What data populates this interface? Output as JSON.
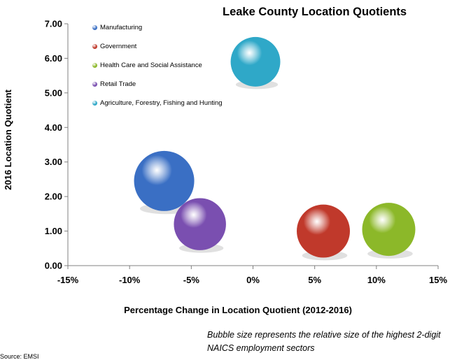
{
  "chart_data": {
    "type": "scatter",
    "variant": "bubble",
    "title": "Leake County Location Quotients",
    "xlabel": "Percentage Change in Location Quotient (2012-2016)",
    "ylabel": "2016 Location Quotient",
    "xlim": [
      -15,
      15
    ],
    "ylim": [
      0,
      7
    ],
    "x_ticks": [
      -15,
      -10,
      -5,
      0,
      5,
      10,
      15
    ],
    "x_tick_labels": [
      "-15%",
      "-10%",
      "-5%",
      "0%",
      "5%",
      "10%",
      "15%"
    ],
    "y_ticks": [
      0,
      1,
      2,
      3,
      4,
      5,
      6,
      7
    ],
    "y_tick_labels": [
      "0.00",
      "1.00",
      "2.00",
      "3.00",
      "4.00",
      "5.00",
      "6.00",
      "7.00"
    ],
    "grid": false,
    "legend_position": "top-left",
    "series": [
      {
        "name": "Manufacturing",
        "x": -7.2,
        "y": 2.45,
        "size": 100,
        "color": "#3a6fc4"
      },
      {
        "name": "Government",
        "x": 5.7,
        "y": 1.0,
        "size": 78,
        "color": "#c0392b"
      },
      {
        "name": "Health Care and Social Assistance",
        "x": 11.0,
        "y": 1.05,
        "size": 78,
        "color": "#8cb829"
      },
      {
        "name": "Retail Trade",
        "x": -4.3,
        "y": 1.2,
        "size": 75,
        "color": "#7a4fb0"
      },
      {
        "name": "Agriculture, Forestry, Fishing and Hunting",
        "x": 0.2,
        "y": 5.9,
        "size": 68,
        "color": "#2fa8c8"
      }
    ]
  },
  "note": "Bubble size represents the relative size of the highest 2-digit NAICS employment sectors",
  "source": "Source: EMSI"
}
